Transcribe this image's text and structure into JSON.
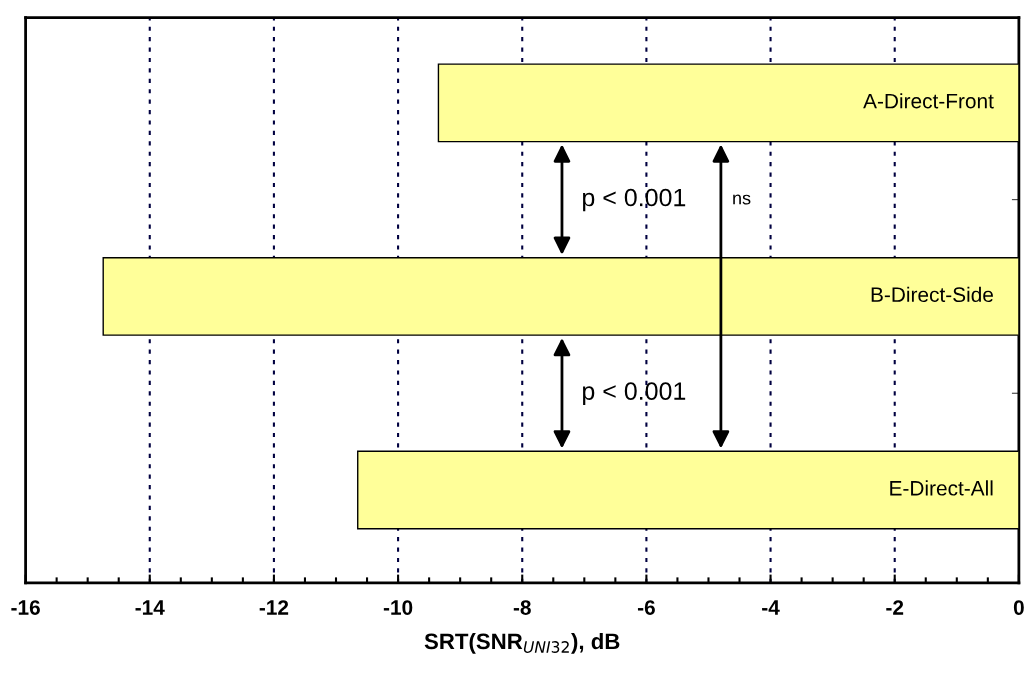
{
  "chart_data": {
    "type": "bar",
    "orientation": "horizontal",
    "categories": [
      "A-Direct-Front",
      "B-Direct-Side",
      "E-Direct-All"
    ],
    "values": [
      -9.35,
      -14.75,
      -10.65
    ],
    "color": "#ffff99",
    "xlabel": "SRT(SNR$_{UNI32}$), dB",
    "xlim": [
      -16,
      0
    ],
    "xticks": [
      -16,
      -14,
      -12,
      -10,
      -8,
      -6,
      -4,
      -2,
      0
    ],
    "grid": "x",
    "tick_labels": "x",
    "annotations": [
      "p < 0.001",
      "p < 0.001",
      "ns"
    ]
  }
}
